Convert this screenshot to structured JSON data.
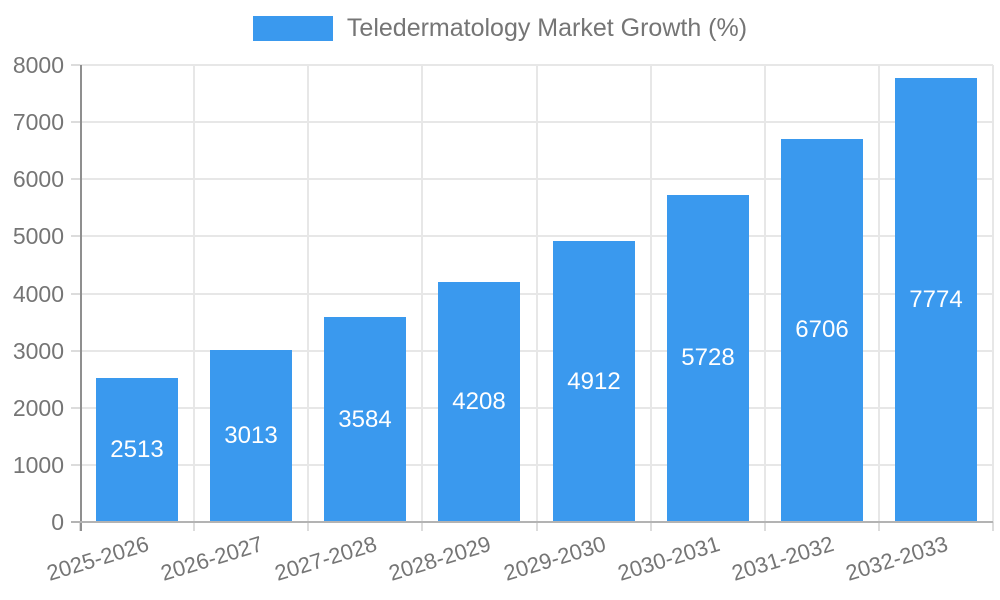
{
  "chart_data": {
    "type": "bar",
    "title": "Teledermatology Market Growth (%)",
    "categories": [
      "2025-2026",
      "2026-2027",
      "2027-2028",
      "2028-2029",
      "2029-2030",
      "2030-2031",
      "2031-2032",
      "2032-2033"
    ],
    "values": [
      2513,
      3013,
      3584,
      4208,
      4912,
      5728,
      6706,
      7774
    ],
    "xlabel": "",
    "ylabel": "",
    "ylim": [
      0,
      8000
    ],
    "ytick_step": 1000,
    "ytick_labels": [
      "0",
      "1000",
      "2000",
      "3000",
      "4000",
      "5000",
      "6000",
      "7000",
      "8000"
    ],
    "grid": true,
    "legend_position": "top",
    "colors": {
      "bar": "#3a99ee",
      "value_label": "#ffffff",
      "axis_text": "#757575",
      "gridline": "#e7e7e7",
      "tick": "#dcdcdc",
      "y_axis_line": "#8f8f8f",
      "x_axis_line": "#b3b3b3"
    }
  }
}
